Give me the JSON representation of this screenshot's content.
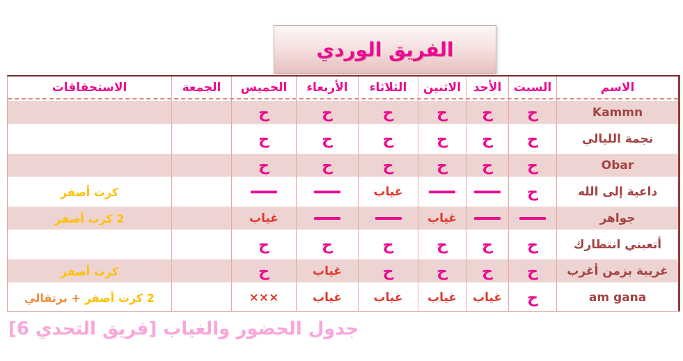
{
  "title": "الفريق الوردي",
  "footer_caption": "جدول الحضور والغياب [فريق التحدي 6]",
  "colors": {
    "magenta_accent": "#ec0a8e",
    "absent_red": "#e2372d",
    "card_yellow": "#ffc000",
    "card_orange": "#f68b33",
    "name_text": "#a34343",
    "row_pink": "#edd4d2",
    "grid_line": "#e5a9a2",
    "outer_border_dark": "#8e3b35"
  },
  "table": {
    "columns": [
      {
        "key": "name",
        "label": "الاسم"
      },
      {
        "key": "sat",
        "label": "السبت"
      },
      {
        "key": "sun",
        "label": "الأحد"
      },
      {
        "key": "mon",
        "label": "الاثنين"
      },
      {
        "key": "tue",
        "label": "الثلاثاء"
      },
      {
        "key": "wed",
        "label": "الأربعاء"
      },
      {
        "key": "thu",
        "label": "الخميس"
      },
      {
        "key": "fri",
        "label": "الجمعة"
      },
      {
        "key": "dues",
        "label": "الاستحقاقات"
      }
    ],
    "marks": {
      "present": "ح",
      "absent": "غياب",
      "dash": "ـــ",
      "crossed": "×××"
    },
    "rows": [
      {
        "name": "Kammn",
        "sat": "ح",
        "sun": "ح",
        "mon": "ح",
        "tue": "ح",
        "wed": "ح",
        "thu": "ح",
        "fri": "",
        "dues": []
      },
      {
        "name": "نجمة الليالي",
        "sat": "ح",
        "sun": "ح",
        "mon": "ح",
        "tue": "ح",
        "wed": "ح",
        "thu": "ح",
        "fri": "",
        "dues": []
      },
      {
        "name": "Obar",
        "sat": "ح",
        "sun": "ح",
        "mon": "ح",
        "tue": "ح",
        "wed": "ح",
        "thu": "ح",
        "fri": "",
        "dues": []
      },
      {
        "name": "داعية إلى الله",
        "sat": "ح",
        "sun": "ـــ",
        "mon": "ـــ",
        "tue": "غياب",
        "wed": "ـــ",
        "thu": "ـــ",
        "fri": "",
        "dues": [
          {
            "text": "كرت أصفر",
            "color": "yellow"
          }
        ]
      },
      {
        "name": "جواهر",
        "sat": "ـــ",
        "sun": "ـــ",
        "mon": "غياب",
        "tue": "ـــ",
        "wed": "ـــ",
        "thu": "غياب",
        "fri": "",
        "dues": [
          {
            "text": "2 كرت أصفر",
            "color": "yellow"
          }
        ]
      },
      {
        "name": "أتعبني انتظارك",
        "sat": "ح",
        "sun": "ح",
        "mon": "ح",
        "tue": "ح",
        "wed": "ح",
        "thu": "ح",
        "fri": "",
        "dues": []
      },
      {
        "name": "غريبة بزمن أغرب",
        "sat": "ح",
        "sun": "ح",
        "mon": "ح",
        "tue": "ح",
        "wed": "غياب",
        "thu": "ح",
        "fri": "",
        "dues": [
          {
            "text": "كرت أصفر",
            "color": "yellow"
          }
        ]
      },
      {
        "name": "am gana",
        "sat": "ح",
        "sun": "غياب",
        "mon": "غياب",
        "tue": "غياب",
        "wed": "غياب",
        "thu": "×××",
        "fri": "",
        "dues": [
          {
            "text": "2 كرت أصفر",
            "color": "yellow"
          },
          {
            "text": "+ برتقالي",
            "color": "orange"
          }
        ]
      }
    ]
  }
}
